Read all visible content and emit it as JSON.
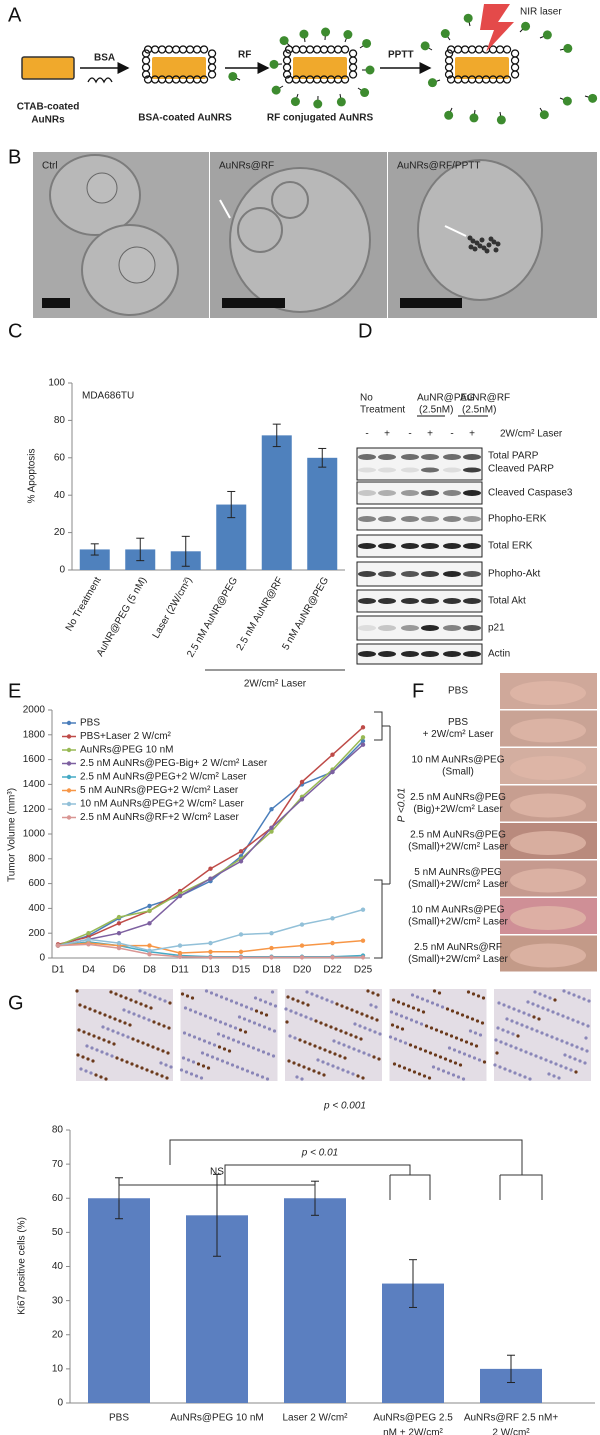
{
  "panels": {
    "A": {
      "label": "A",
      "start": [
        "CTAB-coated",
        "AuNRs"
      ],
      "steps": [
        "BSA",
        "RF",
        "PPTT"
      ],
      "products": [
        "BSA-coated AuNRS",
        "RF conjugated AuNRS"
      ],
      "laser": "NIR laser"
    },
    "B": {
      "label": "B",
      "images": [
        "Ctrl",
        "AuNRs@RF",
        "AuNRs@RF/PPTT"
      ]
    },
    "D": {
      "label": "D",
      "groups": [
        [
          "No",
          "Treatment"
        ],
        [
          "AuNR@PEG",
          "(2.5nM)"
        ],
        [
          "AuNR@RF",
          "(2.5nM)"
        ]
      ],
      "signs": [
        "-",
        "+",
        "-",
        "+",
        "-",
        "+"
      ],
      "laser": "2W/cm² Laser",
      "rows": [
        "Total PARP",
        "Cleaved PARP",
        "Cleaved Caspase3",
        "Phopho-ERK",
        "Total ERK",
        "Phopho-Akt",
        "Total Akt",
        "p21",
        "Actin"
      ]
    },
    "F": {
      "label": "F",
      "rows": [
        [
          "PBS"
        ],
        [
          "PBS",
          "+ 2W/cm² Laser"
        ],
        [
          "10 nM AuNRs@PEG",
          "(Small)"
        ],
        [
          "2.5 nM AuNRs@PEG",
          "(Big)+2W/cm² Laser"
        ],
        [
          "2.5 nM AuNRs@PEG",
          "(Small)+2W/cm² Laser"
        ],
        [
          "5 nM AuNRs@PEG",
          "(Small)+2W/cm² Laser"
        ],
        [
          "10 nM AuNRs@PEG",
          "(Small)+2W/cm² Laser"
        ],
        [
          "2.5 nM AuNRs@RF",
          "(Small)+2W/cm² Laser"
        ]
      ]
    },
    "G": {
      "label": "G"
    }
  },
  "chart_data": [
    {
      "type": "bar",
      "panel": "C",
      "subtitle": "MDA686TU",
      "y_label": "% Apoptosis",
      "color": "#4f81bd",
      "categories": [
        [
          "No Treatment"
        ],
        [
          "AuNR@PEG (5 nM)"
        ],
        [
          "Laser (2W/cm²)"
        ],
        [
          "2.5 nM AuNR@PEG"
        ],
        [
          "2.5 nM AuNR@RF"
        ],
        [
          "5 nM AuNR@PEG"
        ]
      ],
      "values": [
        11,
        11,
        10,
        35,
        72,
        60
      ],
      "errors": [
        3,
        6,
        8,
        7,
        6,
        5
      ],
      "group_label": "2W/cm² Laser",
      "ylim": [
        0,
        100
      ],
      "yticks": [
        0,
        20,
        40,
        60,
        80,
        100
      ]
    },
    {
      "type": "line",
      "panel": "E",
      "y_label": "Tumor Volume (mm³)",
      "annotation": "P <0.01",
      "categories": [
        "D1",
        "D4",
        "D6",
        "D8",
        "D11",
        "D13",
        "D15",
        "D18",
        "D20",
        "D22",
        "D25"
      ],
      "ylim": [
        0,
        2000
      ],
      "yticks": [
        0,
        200,
        400,
        600,
        800,
        1000,
        1200,
        1400,
        1600,
        1800,
        2000
      ],
      "series": [
        {
          "name": "PBS",
          "color": "#4a7ebb",
          "values": [
            100,
            180,
            320,
            420,
            500,
            620,
            820,
            1200,
            1400,
            1500,
            1750
          ]
        },
        {
          "name": "PBS+Laser 2 W/cm²",
          "color": "#be4b48",
          "values": [
            110,
            170,
            280,
            380,
            540,
            720,
            860,
            1050,
            1420,
            1640,
            1860
          ]
        },
        {
          "name": "AuNRs@PEG 10 nM",
          "color": "#98b954",
          "values": [
            100,
            200,
            330,
            380,
            520,
            640,
            800,
            1020,
            1300,
            1520,
            1780
          ]
        },
        {
          "name": "2.5 nM AuNRs@PEG-Big+ 2 W/cm² Laser",
          "color": "#7d60a0",
          "values": [
            100,
            150,
            200,
            280,
            500,
            640,
            780,
            1050,
            1280,
            1500,
            1720
          ]
        },
        {
          "name": "2.5 nM AuNRs@PEG+2 W/cm² Laser",
          "color": "#46aac5",
          "values": [
            100,
            130,
            100,
            50,
            20,
            10,
            10,
            10,
            10,
            10,
            20
          ]
        },
        {
          "name": "5 nM AuNRs@PEG+2 W/cm² Laser",
          "color": "#f79646",
          "values": [
            100,
            120,
            100,
            100,
            40,
            50,
            50,
            80,
            100,
            120,
            140
          ]
        },
        {
          "name": "10 nM AuNRs@PEG+2 W/cm² Laser",
          "color": "#92c0d8",
          "values": [
            100,
            150,
            120,
            60,
            100,
            120,
            190,
            200,
            270,
            320,
            390
          ]
        },
        {
          "name": "2.5 nM AuNRs@RF+2 W/cm² Laser",
          "color": "#d99694",
          "values": [
            100,
            110,
            80,
            30,
            10,
            5,
            5,
            5,
            5,
            5,
            5
          ]
        }
      ]
    },
    {
      "type": "bar",
      "panel": "G",
      "y_label": "Ki67 positive cells (%)",
      "color": "#5b7fc0",
      "categories": [
        [
          "PBS"
        ],
        [
          "AuNRs@PEG 10 nM"
        ],
        [
          "Laser 2 W/cm²"
        ],
        [
          "AuNRs@PEG 2.5",
          "nM +  2W/cm²"
        ],
        [
          "AuNRs@RF 2.5 nM+",
          "2 W/cm²"
        ]
      ],
      "values": [
        60,
        55,
        60,
        35,
        10
      ],
      "errors": [
        6,
        12,
        5,
        7,
        4
      ],
      "annotations": [
        "NS",
        "p < 0.01",
        "p < 0.001"
      ],
      "ylim": [
        0,
        80
      ],
      "yticks": [
        0,
        10,
        20,
        30,
        40,
        50,
        60,
        70,
        80
      ]
    }
  ]
}
